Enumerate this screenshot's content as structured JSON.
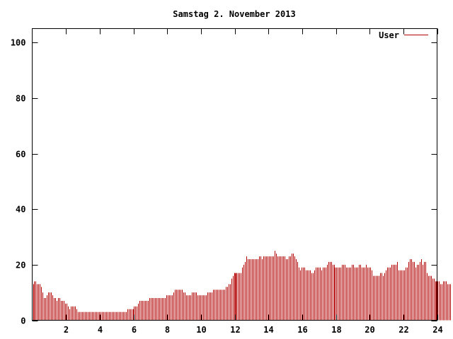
{
  "chart_data": {
    "type": "bar",
    "title": "Samstag 2. November 2013",
    "xlabel": "",
    "ylabel": "",
    "xlim": [
      0,
      24
    ],
    "ylim": [
      0,
      105
    ],
    "x_ticks": [
      "2",
      "4",
      "6",
      "8",
      "10",
      "12",
      "14",
      "16",
      "18",
      "20",
      "22",
      "24"
    ],
    "y_ticks": [
      "0",
      "20",
      "40",
      "60",
      "80",
      "100"
    ],
    "grid": false,
    "legend_position": "top-right",
    "series": [
      {
        "name": "User",
        "color": "#b30000",
        "interval_hours": 0.08333,
        "values": [
          13,
          14,
          14,
          13,
          13,
          13,
          12,
          10,
          8,
          8,
          9,
          10,
          10,
          10,
          9,
          8,
          8,
          7,
          8,
          8,
          7,
          7,
          7,
          6,
          6,
          5,
          4,
          5,
          5,
          5,
          5,
          4,
          3,
          3,
          3,
          3,
          3,
          3,
          3,
          3,
          3,
          3,
          3,
          3,
          3,
          3,
          3,
          3,
          3,
          3,
          3,
          3,
          3,
          3,
          3,
          3,
          3,
          3,
          3,
          3,
          3,
          3,
          3,
          3,
          3,
          3,
          3,
          4,
          4,
          4,
          4,
          4,
          5,
          5,
          5,
          6,
          7,
          7,
          7,
          7,
          7,
          7,
          7,
          8,
          8,
          8,
          8,
          8,
          8,
          8,
          8,
          8,
          8,
          8,
          8,
          9,
          9,
          9,
          9,
          9,
          10,
          11,
          11,
          11,
          11,
          11,
          11,
          10,
          10,
          9,
          9,
          9,
          9,
          10,
          10,
          10,
          10,
          9,
          9,
          9,
          9,
          9,
          9,
          9,
          10,
          10,
          10,
          10,
          11,
          11,
          11,
          11,
          11,
          11,
          11,
          11,
          11,
          12,
          12,
          13,
          13,
          15,
          16,
          17,
          17,
          17,
          17,
          17,
          17,
          19,
          20,
          21,
          23,
          22,
          22,
          22,
          22,
          22,
          22,
          22,
          22,
          23,
          23,
          22,
          23,
          23,
          23,
          23,
          23,
          23,
          23,
          23,
          25,
          24,
          23,
          23,
          23,
          23,
          23,
          23,
          22,
          22,
          23,
          23,
          24,
          24,
          23,
          22,
          21,
          19,
          18,
          19,
          19,
          19,
          18,
          18,
          18,
          18,
          17,
          17,
          18,
          19,
          19,
          19,
          19,
          18,
          19,
          19,
          19,
          20,
          21,
          21,
          21,
          20,
          20,
          19,
          19,
          19,
          19,
          19,
          20,
          20,
          20,
          19,
          19,
          19,
          19,
          20,
          20,
          19,
          19,
          19,
          20,
          20,
          19,
          19,
          19,
          20,
          19,
          19,
          19,
          18,
          16,
          16,
          16,
          16,
          16,
          17,
          17,
          16,
          17,
          18,
          19,
          19,
          19,
          20,
          20,
          20,
          20,
          21,
          18,
          18,
          18,
          18,
          18,
          19,
          19,
          21,
          22,
          22,
          21,
          21,
          19,
          20,
          20,
          21,
          22,
          20,
          21,
          21,
          17,
          16,
          16,
          16,
          15,
          15,
          14,
          14,
          14,
          14,
          13,
          13,
          14,
          14,
          14,
          13,
          13,
          13
        ],
        "highlight_indices": [
          144
        ]
      }
    ]
  }
}
